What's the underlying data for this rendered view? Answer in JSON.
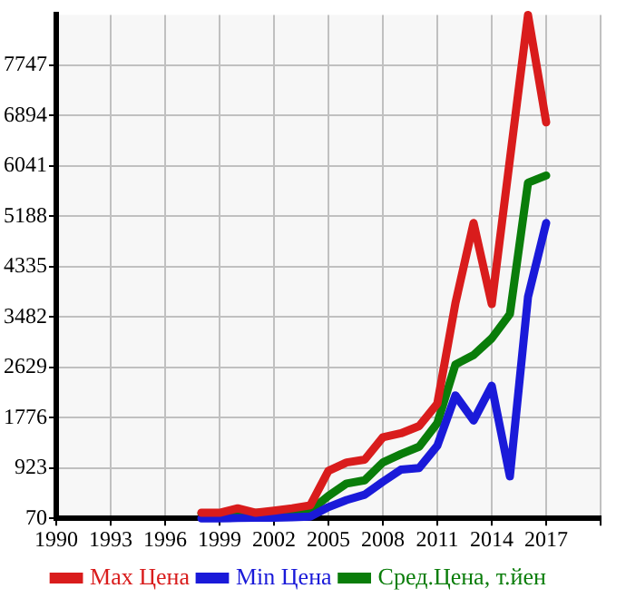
{
  "chart_data": {
    "type": "line",
    "x": [
      1998,
      1999,
      2000,
      2001,
      2002,
      2003,
      2004,
      2005,
      2006,
      2007,
      2008,
      2009,
      2010,
      2011,
      2012,
      2013,
      2014,
      2015,
      2016,
      2017
    ],
    "series": [
      {
        "name": "Max Цена",
        "color": "#d91c1c",
        "values": [
          165,
          165,
          240,
          165,
          200,
          240,
          290,
          875,
          1017,
          1065,
          1443,
          1511,
          1634,
          2012,
          3718,
          5074,
          3700,
          6150,
          8600,
          6780
        ]
      },
      {
        "name": "Min Цена",
        "color": "#1a1ad9",
        "values": [
          70,
          70,
          75,
          80,
          80,
          90,
          100,
          260,
          380,
          470,
          690,
          895,
          923,
          1300,
          2154,
          1727,
          2316,
          781,
          3823,
          5074
        ]
      },
      {
        "name": "Сред.Цена, т.йен",
        "color": "#0a7d0a",
        "values": [
          155,
          155,
          150,
          160,
          170,
          200,
          200,
          450,
          660,
          715,
          1017,
          1160,
          1284,
          1682,
          2677,
          2836,
          3120,
          3530,
          5756,
          5878
        ]
      }
    ],
    "xlim": [
      1990,
      2020
    ],
    "xticks": [
      1990,
      1993,
      1996,
      1999,
      2002,
      2005,
      2008,
      2011,
      2014,
      2017,
      {
        "value": 2020,
        "label": null
      }
    ],
    "ylim": [
      70,
      8600
    ],
    "yticks": [
      70,
      923,
      1776,
      2629,
      3482,
      4335,
      5188,
      6041,
      6894,
      7747
    ],
    "grid": true,
    "legend": "bottom",
    "marker": "none",
    "line_style": "solid"
  }
}
